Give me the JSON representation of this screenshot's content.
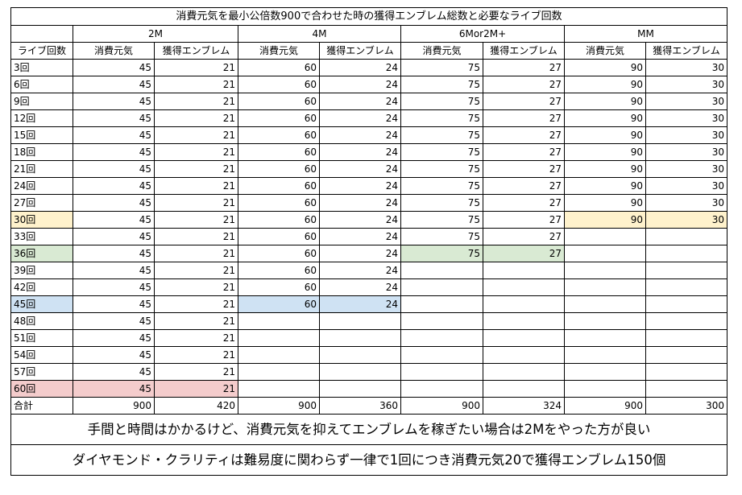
{
  "title": "消費元気を最小公倍数900で合わせた時の獲得エンブレム総数と必要なライブ回数",
  "groups": [
    "2M",
    "4M",
    "6Mor2M+",
    "MM"
  ],
  "row_header": "ライブ回数",
  "sub_headers": [
    "消費元気",
    "獲得エンブレム"
  ],
  "rows": [
    [
      "3回",
      "45",
      "21",
      "60",
      "24",
      "75",
      "27",
      "90",
      "30"
    ],
    [
      "6回",
      "45",
      "21",
      "60",
      "24",
      "75",
      "27",
      "90",
      "30"
    ],
    [
      "9回",
      "45",
      "21",
      "60",
      "24",
      "75",
      "27",
      "90",
      "30"
    ],
    [
      "12回",
      "45",
      "21",
      "60",
      "24",
      "75",
      "27",
      "90",
      "30"
    ],
    [
      "15回",
      "45",
      "21",
      "60",
      "24",
      "75",
      "27",
      "90",
      "30"
    ],
    [
      "18回",
      "45",
      "21",
      "60",
      "24",
      "75",
      "27",
      "90",
      "30"
    ],
    [
      "21回",
      "45",
      "21",
      "60",
      "24",
      "75",
      "27",
      "90",
      "30"
    ],
    [
      "24回",
      "45",
      "21",
      "60",
      "24",
      "75",
      "27",
      "90",
      "30"
    ],
    [
      "27回",
      "45",
      "21",
      "60",
      "24",
      "75",
      "27",
      "90",
      "30"
    ],
    [
      "30回",
      "45",
      "21",
      "60",
      "24",
      "75",
      "27",
      "90",
      "30"
    ],
    [
      "33回",
      "45",
      "21",
      "60",
      "24",
      "75",
      "27",
      "",
      ""
    ],
    [
      "36回",
      "45",
      "21",
      "60",
      "24",
      "75",
      "27",
      "",
      ""
    ],
    [
      "39回",
      "45",
      "21",
      "60",
      "24",
      "",
      "",
      "",
      ""
    ],
    [
      "42回",
      "45",
      "21",
      "60",
      "24",
      "",
      "",
      "",
      ""
    ],
    [
      "45回",
      "45",
      "21",
      "60",
      "24",
      "",
      "",
      "",
      ""
    ],
    [
      "48回",
      "45",
      "21",
      "",
      "",
      "",
      "",
      "",
      ""
    ],
    [
      "51回",
      "45",
      "21",
      "",
      "",
      "",
      "",
      "",
      ""
    ],
    [
      "54回",
      "45",
      "21",
      "",
      "",
      "",
      "",
      "",
      ""
    ],
    [
      "57回",
      "45",
      "21",
      "",
      "",
      "",
      "",
      "",
      ""
    ],
    [
      "60回",
      "45",
      "21",
      "",
      "",
      "",
      "",
      "",
      ""
    ]
  ],
  "highlights": [
    {
      "row": "30回",
      "color": "#fff2cc",
      "cols": [
        0,
        7,
        8
      ]
    },
    {
      "row": "36回",
      "color": "#d9ead3",
      "cols": [
        0,
        5,
        6
      ]
    },
    {
      "row": "45回",
      "color": "#cfe2f3",
      "cols": [
        0,
        3,
        4
      ]
    },
    {
      "row": "60回",
      "color": "#f4cccc",
      "cols": [
        0,
        1,
        2
      ]
    }
  ],
  "total_row": [
    "合計",
    "900",
    "420",
    "900",
    "360",
    "900",
    "324",
    "900",
    "300"
  ],
  "notes": [
    "手間と時間はかかるけど、消費元気を抑えてエンブレムを稼ぎたい場合は2Mをやった方が良い",
    "ダイヤモンド・クラリティは難易度に関わらず一律で1回につき消費元気20で獲得エンブレム150個"
  ]
}
